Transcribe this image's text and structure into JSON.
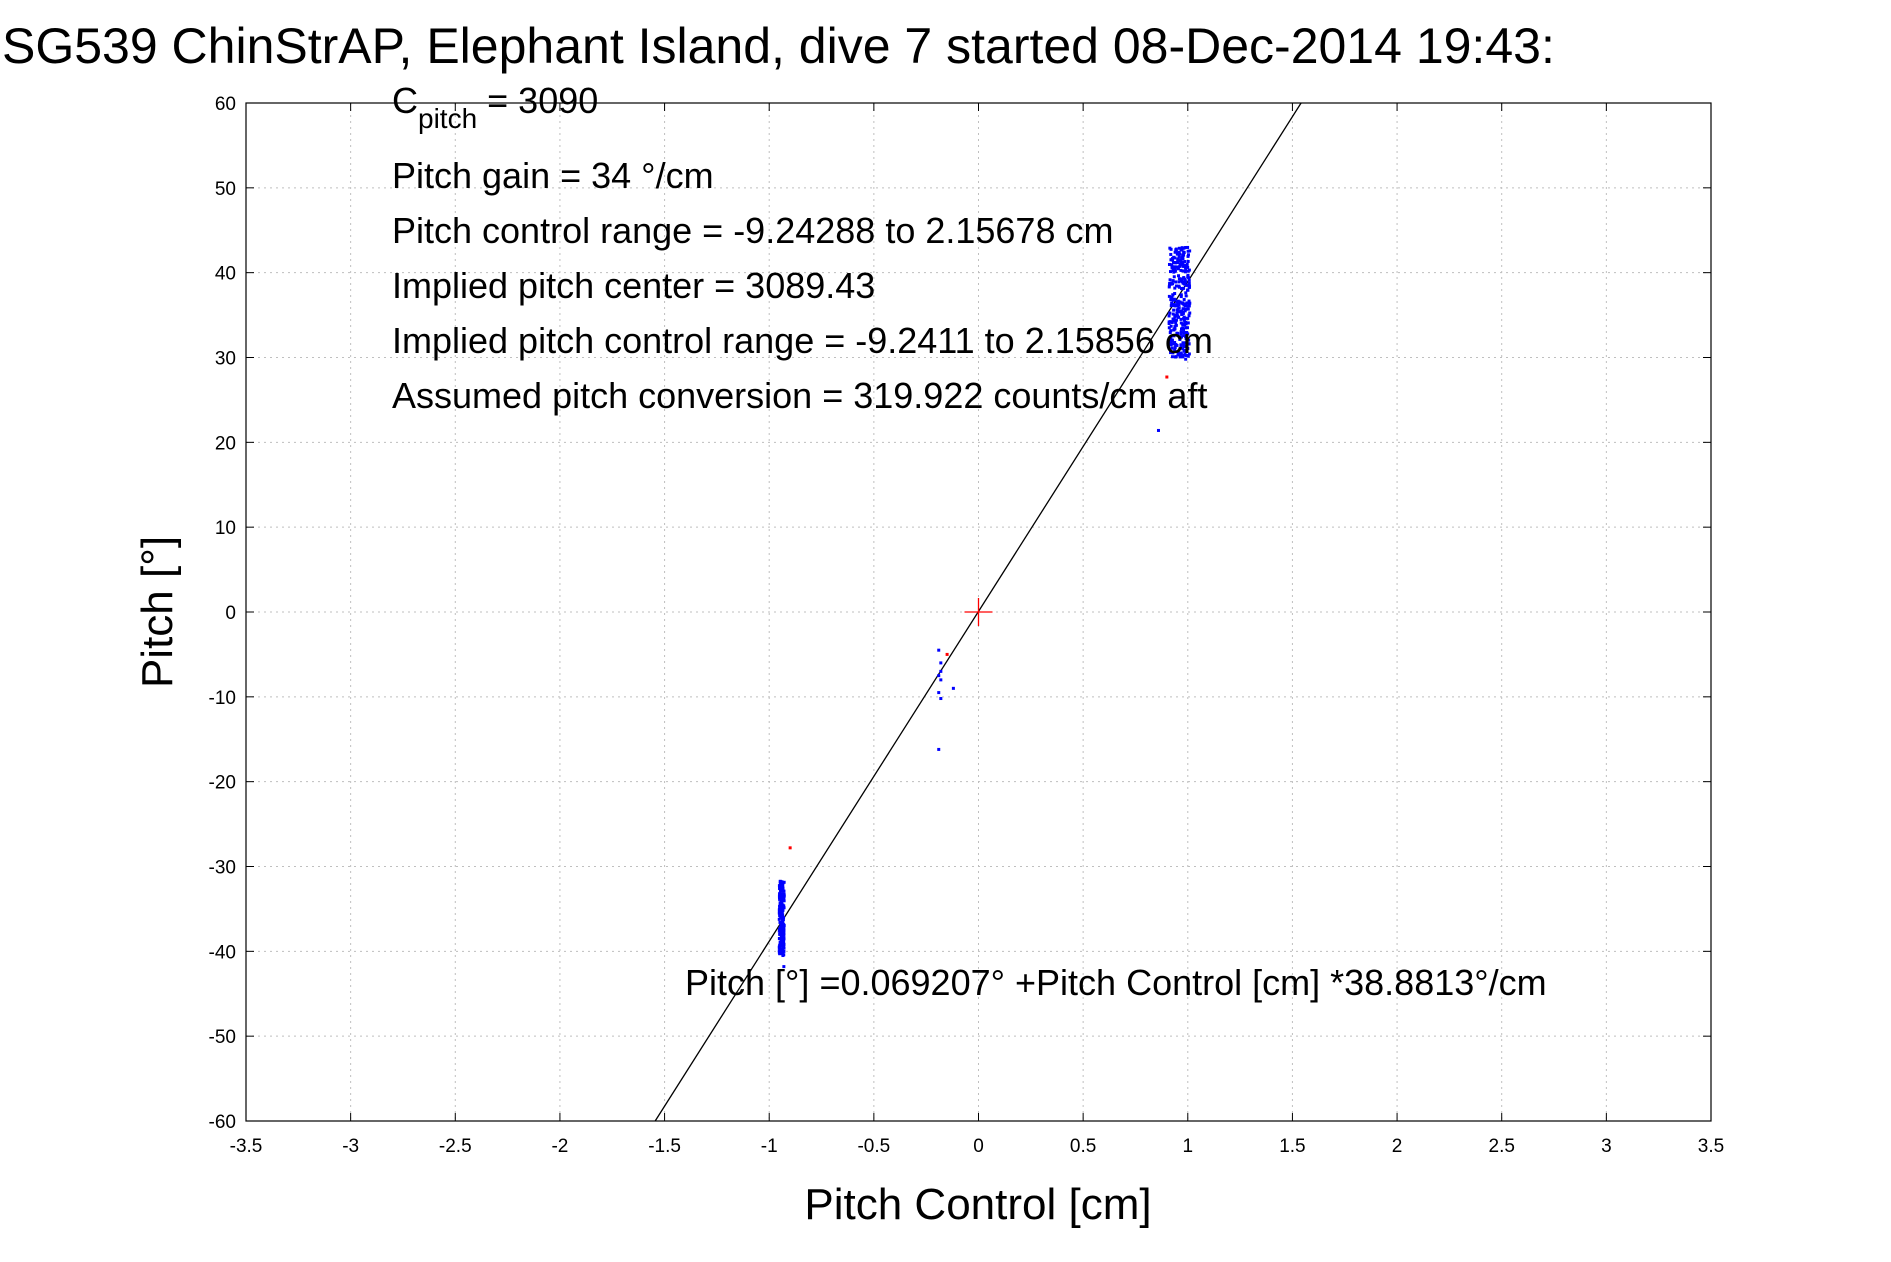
{
  "chart_data": {
    "type": "scatter",
    "title": "SG539 ChinStrAP, Elephant Island, dive 7 started 08-Dec-2014 19:43:",
    "xlabel": "Pitch Control [cm]",
    "ylabel": "Pitch [°]",
    "xlim": [
      -3.5,
      3.5
    ],
    "ylim": [
      -60,
      60
    ],
    "grid": true,
    "x_ticks": [
      "-3.5",
      "-3",
      "-2.5",
      "-2",
      "-1.5",
      "-1",
      "-0.5",
      "0",
      "0.5",
      "1",
      "1.5",
      "2",
      "2.5",
      "3",
      "3.5"
    ],
    "y_ticks": [
      "60",
      "50",
      "40",
      "30",
      "20",
      "10",
      "0",
      "-10",
      "-20",
      "-30",
      "-40",
      "-50",
      "-60"
    ],
    "annotations": {
      "c_pitch_main": "C",
      "c_pitch_sub": "pitch",
      "c_pitch_value": " = 3090",
      "gain": "Pitch gain = 34 °/cm",
      "range": "Pitch control range = -9.24288 to 2.15678 cm",
      "implied_center": "Implied pitch center = 3089.43",
      "implied_range": "Implied pitch control range = -9.2411 to 2.15856 cm",
      "conversion": "Assumed pitch conversion = 319.922 counts/cm aft",
      "fit_equation": "Pitch [°] =0.069207° +Pitch Control [cm] *38.8813°/cm"
    },
    "fit_line": {
      "intercept": 0.069207,
      "slope": 38.8813,
      "color": "#000000"
    },
    "center_marker": {
      "x": 0,
      "y": 0,
      "color": "#ff0000"
    },
    "series": [
      {
        "color": "#0000ff",
        "clusters": [
          {
            "x_center": 0.96,
            "x_spread": 0.05,
            "y_min": 30,
            "y_max": 43,
            "count": 320
          },
          {
            "x_center": -0.94,
            "x_spread": 0.012,
            "y_min": -40.5,
            "y_max": -31.5,
            "count": 180
          }
        ],
        "points": [
          [
            0.86,
            21.4
          ],
          [
            0.96,
            30.5
          ],
          [
            0.99,
            29.8
          ],
          [
            0.92,
            31.5
          ],
          [
            -0.93,
            -41.8
          ],
          [
            -0.19,
            -4.5
          ],
          [
            -0.18,
            -6
          ],
          [
            -0.19,
            -7.5
          ],
          [
            -0.18,
            -8
          ],
          [
            -0.19,
            -9.5
          ],
          [
            -0.18,
            -10.2
          ],
          [
            -0.19,
            -16.2
          ],
          [
            -0.12,
            -9
          ],
          [
            -0.18,
            -7
          ]
        ]
      },
      {
        "color": "#ff0000",
        "points": [
          [
            0.9,
            27.7
          ],
          [
            -0.9,
            -27.8
          ],
          [
            -0.15,
            -5
          ]
        ]
      }
    ]
  }
}
